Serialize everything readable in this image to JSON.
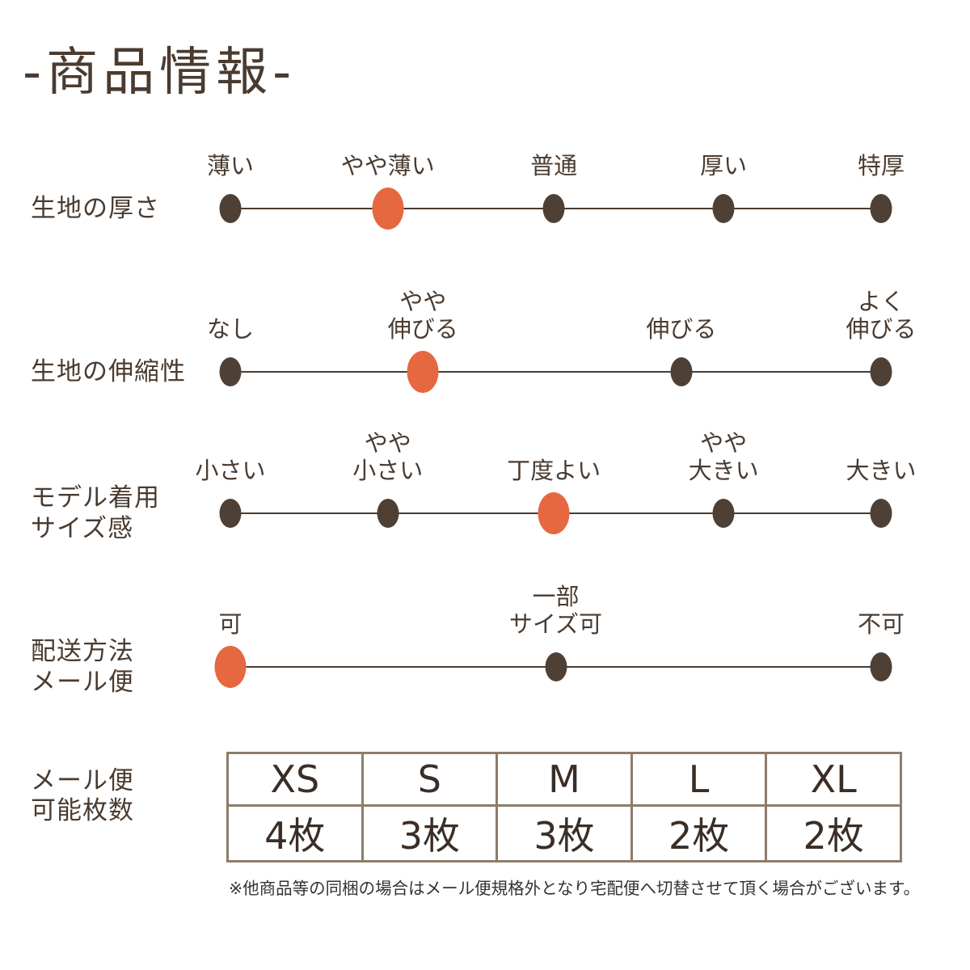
{
  "title": "-商品情報-",
  "colors": {
    "text": "#4A3B30",
    "dot": "#4F4036",
    "accent": "#E56840",
    "line": "#4A3B30",
    "table_border": "#8D7D69",
    "table_text": "#3A2E26",
    "footnote_text": "#333333"
  },
  "scales": [
    {
      "label_lines": [
        "生地の厚さ"
      ],
      "options": [
        {
          "label_lines": [
            "薄い"
          ],
          "pos": 0,
          "selected": false
        },
        {
          "label_lines": [
            "やや薄い"
          ],
          "pos": 0.242,
          "selected": true
        },
        {
          "label_lines": [
            "普通"
          ],
          "pos": 0.497,
          "selected": false
        },
        {
          "label_lines": [
            "厚い"
          ],
          "pos": 0.758,
          "selected": false
        },
        {
          "label_lines": [
            "特厚"
          ],
          "pos": 1,
          "selected": false
        }
      ]
    },
    {
      "label_lines": [
        "生地の伸縮性"
      ],
      "options": [
        {
          "label_lines": [
            "なし"
          ],
          "pos": 0,
          "selected": false
        },
        {
          "label_lines": [
            "やや",
            "伸びる"
          ],
          "pos": 0.296,
          "selected": true
        },
        {
          "label_lines": [
            "伸びる"
          ],
          "pos": 0.693,
          "selected": false
        },
        {
          "label_lines": [
            "よく",
            "伸びる"
          ],
          "pos": 1,
          "selected": false
        }
      ]
    },
    {
      "label_lines": [
        "モデル着用",
        "サイズ感"
      ],
      "options": [
        {
          "label_lines": [
            "小さい"
          ],
          "pos": 0,
          "selected": false
        },
        {
          "label_lines": [
            "やや",
            "小さい"
          ],
          "pos": 0.242,
          "selected": false
        },
        {
          "label_lines": [
            "丁度よい"
          ],
          "pos": 0.497,
          "selected": true
        },
        {
          "label_lines": [
            "やや",
            "大きい"
          ],
          "pos": 0.758,
          "selected": false
        },
        {
          "label_lines": [
            "大きい"
          ],
          "pos": 1,
          "selected": false
        }
      ]
    },
    {
      "label_lines": [
        "配送方法",
        "メール便"
      ],
      "options": [
        {
          "label_lines": [
            "可"
          ],
          "pos": 0,
          "selected": true
        },
        {
          "label_lines": [
            "一部",
            "サイズ可"
          ],
          "pos": 0.5,
          "selected": false
        },
        {
          "label_lines": [
            "不可"
          ],
          "pos": 1,
          "selected": false
        }
      ]
    }
  ],
  "mail_table": {
    "label_lines": [
      "メール便",
      "可能枚数"
    ],
    "headers": [
      "XS",
      "S",
      "M",
      "L",
      "XL"
    ],
    "values": [
      "4枚",
      "3枚",
      "3枚",
      "2枚",
      "2枚"
    ]
  },
  "footnote": "※他商品等の同梱の場合はメール便規格外となり宅配便へ切替させて頂く場合がございます。"
}
